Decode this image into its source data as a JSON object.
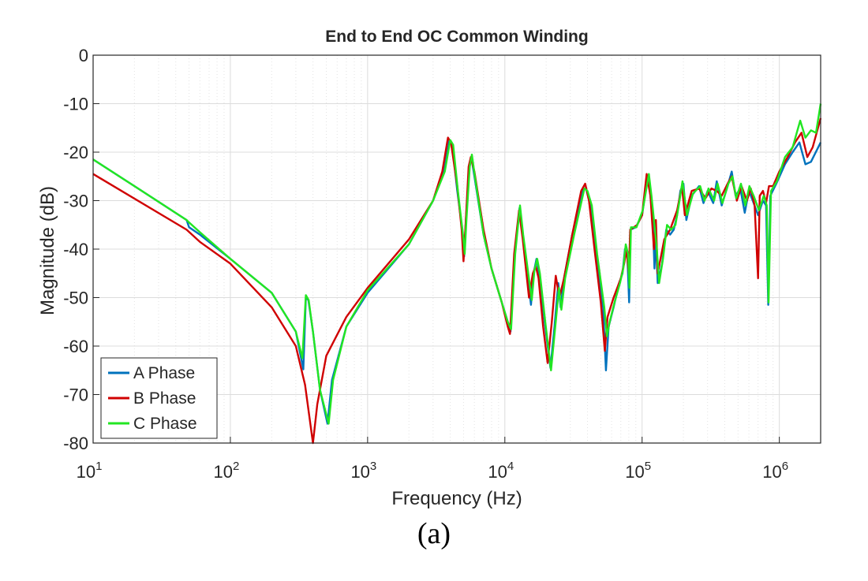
{
  "caption": "(a)",
  "colors": {
    "A": "#0072BD",
    "B": "#D00000",
    "C": "#22E622"
  },
  "chart_data": {
    "type": "line",
    "title": "End to End OC Common Winding",
    "xlabel": "Frequency (Hz)",
    "ylabel": "Magnitude (dB)",
    "xscale": "log",
    "xlim": [
      10,
      2000000
    ],
    "ylim": [
      -80,
      0
    ],
    "yticks": [
      0,
      -10,
      -20,
      -30,
      -40,
      -50,
      -60,
      -70,
      -80
    ],
    "xticks": [
      {
        "value": 10,
        "base": "10",
        "exp": "1"
      },
      {
        "value": 100,
        "base": "10",
        "exp": "2"
      },
      {
        "value": 1000,
        "base": "10",
        "exp": "3"
      },
      {
        "value": 10000,
        "base": "10",
        "exp": "4"
      },
      {
        "value": 100000,
        "base": "10",
        "exp": "5"
      },
      {
        "value": 1000000,
        "base": "10",
        "exp": "6"
      }
    ],
    "grid": true,
    "legend_position": "bottom-left",
    "series": [
      {
        "name": "A Phase",
        "color": "#0072BD",
        "points": [
          [
            10,
            -21.5
          ],
          [
            20,
            -27
          ],
          [
            48,
            -34
          ],
          [
            50,
            -35.5
          ],
          [
            60,
            -37
          ],
          [
            100,
            -42
          ],
          [
            200,
            -49
          ],
          [
            300,
            -57
          ],
          [
            340,
            -64.8
          ],
          [
            355,
            -50
          ],
          [
            370,
            -50.5
          ],
          [
            400,
            -57
          ],
          [
            450,
            -69
          ],
          [
            510,
            -76
          ],
          [
            550,
            -67
          ],
          [
            700,
            -56
          ],
          [
            1000,
            -49
          ],
          [
            2000,
            -39
          ],
          [
            3000,
            -30
          ],
          [
            3600,
            -24
          ],
          [
            3950,
            -17.5
          ],
          [
            4150,
            -19
          ],
          [
            4500,
            -28
          ],
          [
            4900,
            -36
          ],
          [
            5050,
            -41.5
          ],
          [
            5200,
            -34
          ],
          [
            5500,
            -23
          ],
          [
            5700,
            -21
          ],
          [
            6000,
            -25
          ],
          [
            7000,
            -37
          ],
          [
            8000,
            -44
          ],
          [
            9500,
            -51
          ],
          [
            10500,
            -55
          ],
          [
            11000,
            -57
          ],
          [
            11800,
            -41
          ],
          [
            12800,
            -31.5
          ],
          [
            13500,
            -37
          ],
          [
            15500,
            -51.5
          ],
          [
            16200,
            -45
          ],
          [
            17000,
            -42
          ],
          [
            17800,
            -45
          ],
          [
            19500,
            -55
          ],
          [
            21500,
            -64.5
          ],
          [
            23000,
            -56
          ],
          [
            24500,
            -47
          ],
          [
            25500,
            -52
          ],
          [
            27000,
            -46
          ],
          [
            31000,
            -37
          ],
          [
            37000,
            -27.5
          ],
          [
            39000,
            -27.5
          ],
          [
            42000,
            -31
          ],
          [
            46000,
            -41
          ],
          [
            52000,
            -52
          ],
          [
            54500,
            -65
          ],
          [
            57000,
            -56
          ],
          [
            62000,
            -52
          ],
          [
            68000,
            -47
          ],
          [
            72000,
            -45
          ],
          [
            75000,
            -40
          ],
          [
            78000,
            -41
          ],
          [
            80500,
            -51
          ],
          [
            82000,
            -36
          ],
          [
            90000,
            -35.5
          ],
          [
            100000,
            -33
          ],
          [
            110000,
            -25
          ],
          [
            115000,
            -29
          ],
          [
            120000,
            -35
          ],
          [
            123000,
            -44
          ],
          [
            126000,
            -38
          ],
          [
            130000,
            -47
          ],
          [
            140000,
            -43
          ],
          [
            150000,
            -36
          ],
          [
            160000,
            -37
          ],
          [
            170000,
            -36
          ],
          [
            180000,
            -33
          ],
          [
            190000,
            -28
          ],
          [
            200000,
            -26.5
          ],
          [
            210000,
            -34
          ],
          [
            230000,
            -29
          ],
          [
            260000,
            -27
          ],
          [
            280000,
            -30.5
          ],
          [
            300000,
            -28
          ],
          [
            330000,
            -30.5
          ],
          [
            350000,
            -26
          ],
          [
            380000,
            -31
          ],
          [
            420000,
            -27
          ],
          [
            450000,
            -24
          ],
          [
            480000,
            -29
          ],
          [
            520000,
            -27.5
          ],
          [
            560000,
            -32.5
          ],
          [
            600000,
            -28
          ],
          [
            640000,
            -30
          ],
          [
            700000,
            -33
          ],
          [
            760000,
            -30
          ],
          [
            800000,
            -31
          ],
          [
            830000,
            -51.5
          ],
          [
            860000,
            -29
          ],
          [
            950000,
            -26.5
          ],
          [
            1100000,
            -22.5
          ],
          [
            1250000,
            -20
          ],
          [
            1400000,
            -18
          ],
          [
            1550000,
            -22.5
          ],
          [
            1700000,
            -22
          ],
          [
            2000000,
            -18
          ]
        ]
      },
      {
        "name": "B Phase",
        "color": "#D00000",
        "points": [
          [
            10,
            -24.5
          ],
          [
            48,
            -36
          ],
          [
            60,
            -38.5
          ],
          [
            100,
            -43
          ],
          [
            200,
            -52
          ],
          [
            300,
            -60
          ],
          [
            350,
            -68
          ],
          [
            400,
            -80
          ],
          [
            430,
            -72
          ],
          [
            500,
            -62
          ],
          [
            700,
            -54
          ],
          [
            1000,
            -48
          ],
          [
            2000,
            -38
          ],
          [
            3000,
            -30
          ],
          [
            3500,
            -24
          ],
          [
            3850,
            -17
          ],
          [
            4050,
            -18
          ],
          [
            4500,
            -27
          ],
          [
            4850,
            -36
          ],
          [
            5000,
            -42.5
          ],
          [
            5150,
            -36
          ],
          [
            5450,
            -23
          ],
          [
            5650,
            -21
          ],
          [
            6000,
            -24
          ],
          [
            7000,
            -36
          ],
          [
            8000,
            -44
          ],
          [
            9500,
            -51
          ],
          [
            10500,
            -56
          ],
          [
            10900,
            -57.5
          ],
          [
            11700,
            -41
          ],
          [
            12700,
            -32
          ],
          [
            13500,
            -38
          ],
          [
            15000,
            -50
          ],
          [
            16000,
            -45
          ],
          [
            16800,
            -43.5
          ],
          [
            17600,
            -46
          ],
          [
            19000,
            -56
          ],
          [
            20500,
            -63.5
          ],
          [
            22000,
            -55
          ],
          [
            23500,
            -45.5
          ],
          [
            25000,
            -50
          ],
          [
            27000,
            -46
          ],
          [
            31000,
            -37
          ],
          [
            36000,
            -28
          ],
          [
            38500,
            -26.5
          ],
          [
            41000,
            -30
          ],
          [
            45000,
            -40
          ],
          [
            50000,
            -51
          ],
          [
            53500,
            -61
          ],
          [
            56000,
            -54
          ],
          [
            62000,
            -50
          ],
          [
            70000,
            -46
          ],
          [
            74000,
            -43
          ],
          [
            77000,
            -40
          ],
          [
            80000,
            -45
          ],
          [
            82000,
            -36
          ],
          [
            92000,
            -35
          ],
          [
            100000,
            -33
          ],
          [
            108000,
            -24.5
          ],
          [
            115000,
            -29
          ],
          [
            122000,
            -40
          ],
          [
            126000,
            -34
          ],
          [
            130000,
            -45
          ],
          [
            145000,
            -38
          ],
          [
            160000,
            -36
          ],
          [
            180000,
            -32
          ],
          [
            195000,
            -27
          ],
          [
            205000,
            -33
          ],
          [
            230000,
            -28
          ],
          [
            260000,
            -27.5
          ],
          [
            290000,
            -29.5
          ],
          [
            320000,
            -27.5
          ],
          [
            350000,
            -28
          ],
          [
            380000,
            -29
          ],
          [
            420000,
            -26.5
          ],
          [
            450000,
            -25
          ],
          [
            490000,
            -30
          ],
          [
            530000,
            -27
          ],
          [
            580000,
            -30
          ],
          [
            620000,
            -27.5
          ],
          [
            660000,
            -31
          ],
          [
            700000,
            -46
          ],
          [
            720000,
            -29
          ],
          [
            760000,
            -28
          ],
          [
            800000,
            -30.5
          ],
          [
            840000,
            -27
          ],
          [
            900000,
            -27
          ],
          [
            1000000,
            -24
          ],
          [
            1150000,
            -21
          ],
          [
            1300000,
            -18
          ],
          [
            1450000,
            -16
          ],
          [
            1600000,
            -21
          ],
          [
            1750000,
            -19
          ],
          [
            2000000,
            -13
          ]
        ]
      },
      {
        "name": "C Phase",
        "color": "#22E622",
        "points": [
          [
            10,
            -21.5
          ],
          [
            20,
            -27
          ],
          [
            48,
            -34
          ],
          [
            50,
            -34.5
          ],
          [
            60,
            -36.5
          ],
          [
            100,
            -42
          ],
          [
            200,
            -49
          ],
          [
            300,
            -57
          ],
          [
            335,
            -62.5
          ],
          [
            355,
            -49.5
          ],
          [
            372,
            -50.5
          ],
          [
            400,
            -57
          ],
          [
            450,
            -69
          ],
          [
            520,
            -76
          ],
          [
            560,
            -67
          ],
          [
            700,
            -56
          ],
          [
            1000,
            -48.5
          ],
          [
            2000,
            -39
          ],
          [
            3000,
            -30
          ],
          [
            3650,
            -24
          ],
          [
            4000,
            -17.5
          ],
          [
            4200,
            -18.5
          ],
          [
            4550,
            -28
          ],
          [
            4950,
            -37
          ],
          [
            5100,
            -41
          ],
          [
            5250,
            -34
          ],
          [
            5550,
            -23
          ],
          [
            5750,
            -20.5
          ],
          [
            6050,
            -25
          ],
          [
            7000,
            -37
          ],
          [
            8000,
            -44
          ],
          [
            9500,
            -51
          ],
          [
            10500,
            -55
          ],
          [
            11100,
            -56.5
          ],
          [
            11900,
            -41
          ],
          [
            12900,
            -31
          ],
          [
            13600,
            -37
          ],
          [
            15700,
            -50.5
          ],
          [
            16400,
            -44.5
          ],
          [
            17200,
            -42
          ],
          [
            18000,
            -45
          ],
          [
            19700,
            -55
          ],
          [
            21700,
            -65
          ],
          [
            23300,
            -56
          ],
          [
            24800,
            -48
          ],
          [
            25800,
            -52.5
          ],
          [
            27500,
            -46
          ],
          [
            32000,
            -37
          ],
          [
            38000,
            -27.5
          ],
          [
            40000,
            -28
          ],
          [
            43000,
            -31
          ],
          [
            47000,
            -41
          ],
          [
            53000,
            -52
          ],
          [
            55500,
            -58
          ],
          [
            58000,
            -55
          ],
          [
            63000,
            -51
          ],
          [
            69000,
            -47
          ],
          [
            73000,
            -44
          ],
          [
            76000,
            -39
          ],
          [
            79000,
            -41
          ],
          [
            81000,
            -48
          ],
          [
            83000,
            -35.5
          ],
          [
            91000,
            -35.5
          ],
          [
            101000,
            -32
          ],
          [
            112000,
            -24.5
          ],
          [
            117000,
            -29
          ],
          [
            124000,
            -36
          ],
          [
            128000,
            -40
          ],
          [
            133000,
            -47
          ],
          [
            142000,
            -42
          ],
          [
            152000,
            -35
          ],
          [
            163000,
            -36
          ],
          [
            175000,
            -35
          ],
          [
            185000,
            -31
          ],
          [
            197000,
            -26
          ],
          [
            212000,
            -33
          ],
          [
            235000,
            -28.5
          ],
          [
            265000,
            -27
          ],
          [
            285000,
            -30
          ],
          [
            305000,
            -27.5
          ],
          [
            335000,
            -30
          ],
          [
            355000,
            -26.5
          ],
          [
            385000,
            -30.5
          ],
          [
            425000,
            -26.5
          ],
          [
            455000,
            -25
          ],
          [
            485000,
            -29.5
          ],
          [
            525000,
            -26.5
          ],
          [
            565000,
            -31
          ],
          [
            605000,
            -27
          ],
          [
            650000,
            -29
          ],
          [
            710000,
            -32
          ],
          [
            770000,
            -29
          ],
          [
            810000,
            -31
          ],
          [
            835000,
            -51
          ],
          [
            870000,
            -28
          ],
          [
            960000,
            -26
          ],
          [
            1100000,
            -21
          ],
          [
            1250000,
            -19
          ],
          [
            1420000,
            -13.5
          ],
          [
            1550000,
            -17
          ],
          [
            1700000,
            -15.5
          ],
          [
            1850000,
            -16
          ],
          [
            2000000,
            -10
          ]
        ]
      }
    ]
  }
}
